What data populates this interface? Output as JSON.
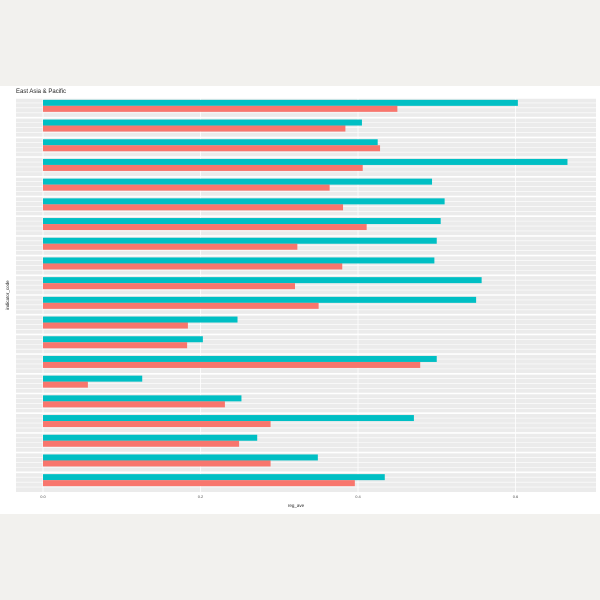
{
  "chart_data": {
    "type": "bar",
    "orientation": "horizontal",
    "title": "East Asia & Pacific",
    "xlabel": "reg_ave",
    "ylabel": "indicator_code",
    "xlim": [
      0,
      0.7
    ],
    "x_ticks": [
      "0.0",
      "0.2",
      "0.4",
      "0.6"
    ],
    "x_tick_values": [
      0,
      0.2,
      0.4,
      0.6
    ],
    "category_count": 20,
    "series": [
      {
        "color": "#00bfc4",
        "values": [
          0.603,
          0.405,
          0.425,
          0.666,
          0.494,
          0.51,
          0.505,
          0.5,
          0.497,
          0.557,
          0.55,
          0.247,
          0.203,
          0.5,
          0.126,
          0.252,
          0.471,
          0.272,
          0.349,
          0.434
        ]
      },
      {
        "color": "#f8766d",
        "values": [
          0.45,
          0.384,
          0.428,
          0.406,
          0.364,
          0.381,
          0.411,
          0.323,
          0.38,
          0.32,
          0.35,
          0.184,
          0.183,
          0.479,
          0.057,
          0.231,
          0.289,
          0.249,
          0.289,
          0.396
        ]
      }
    ],
    "grid": true,
    "legend": "none",
    "panel_background": "#ebebeb"
  }
}
